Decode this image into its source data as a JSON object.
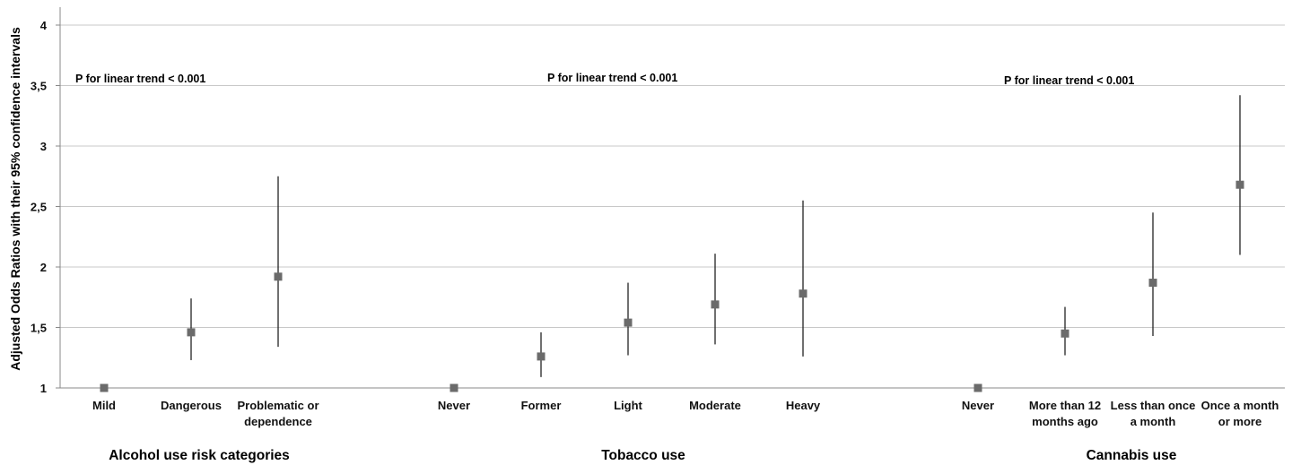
{
  "chart_data": {
    "type": "scatter",
    "ylabel": "Adjusted Odds Ratios with their 95% confidence intervals",
    "ylim": [
      1,
      4
    ],
    "yticks": [
      {
        "value": 1,
        "label": "1"
      },
      {
        "value": 1.5,
        "label": "1,5"
      },
      {
        "value": 2,
        "label": "2"
      },
      {
        "value": 2.5,
        "label": "2,5"
      },
      {
        "value": 3,
        "label": "3"
      },
      {
        "value": 3.5,
        "label": "3,5"
      },
      {
        "value": 4,
        "label": "4"
      }
    ],
    "grid": true,
    "marker_color": "#6b6b6b",
    "error_bar_color": "#222222",
    "groups": [
      {
        "label": "Alcohol use risk categories",
        "annotation": "P for linear trend < 0.001",
        "points": [
          {
            "category": [
              "Mild"
            ],
            "value": 1.0,
            "ci": null
          },
          {
            "category": [
              "Dangerous"
            ],
            "value": 1.46,
            "ci": [
              1.23,
              1.74
            ]
          },
          {
            "category": [
              "Problematic or",
              "dependence"
            ],
            "value": 1.92,
            "ci": [
              1.34,
              2.75
            ]
          }
        ]
      },
      {
        "label": "Tobacco use",
        "annotation": "P for linear trend < 0.001",
        "points": [
          {
            "category": [
              "Never"
            ],
            "value": 1.0,
            "ci": null
          },
          {
            "category": [
              "Former"
            ],
            "value": 1.26,
            "ci": [
              1.09,
              1.46
            ]
          },
          {
            "category": [
              "Light"
            ],
            "value": 1.54,
            "ci": [
              1.27,
              1.87
            ]
          },
          {
            "category": [
              "Moderate"
            ],
            "value": 1.69,
            "ci": [
              1.36,
              2.11
            ]
          },
          {
            "category": [
              "Heavy"
            ],
            "value": 1.78,
            "ci": [
              1.26,
              2.55
            ]
          }
        ]
      },
      {
        "label": "Cannabis use",
        "annotation": "P for linear trend < 0.001",
        "points": [
          {
            "category": [
              "Never"
            ],
            "value": 1.0,
            "ci": null
          },
          {
            "category": [
              "More than 12",
              "months ago"
            ],
            "value": 1.45,
            "ci": [
              1.27,
              1.67
            ]
          },
          {
            "category": [
              "Less than once",
              "a month"
            ],
            "value": 1.87,
            "ci": [
              1.43,
              2.45
            ]
          },
          {
            "category": [
              "Once a month",
              "or more"
            ],
            "value": 2.68,
            "ci": [
              2.1,
              3.42
            ]
          }
        ]
      }
    ]
  }
}
